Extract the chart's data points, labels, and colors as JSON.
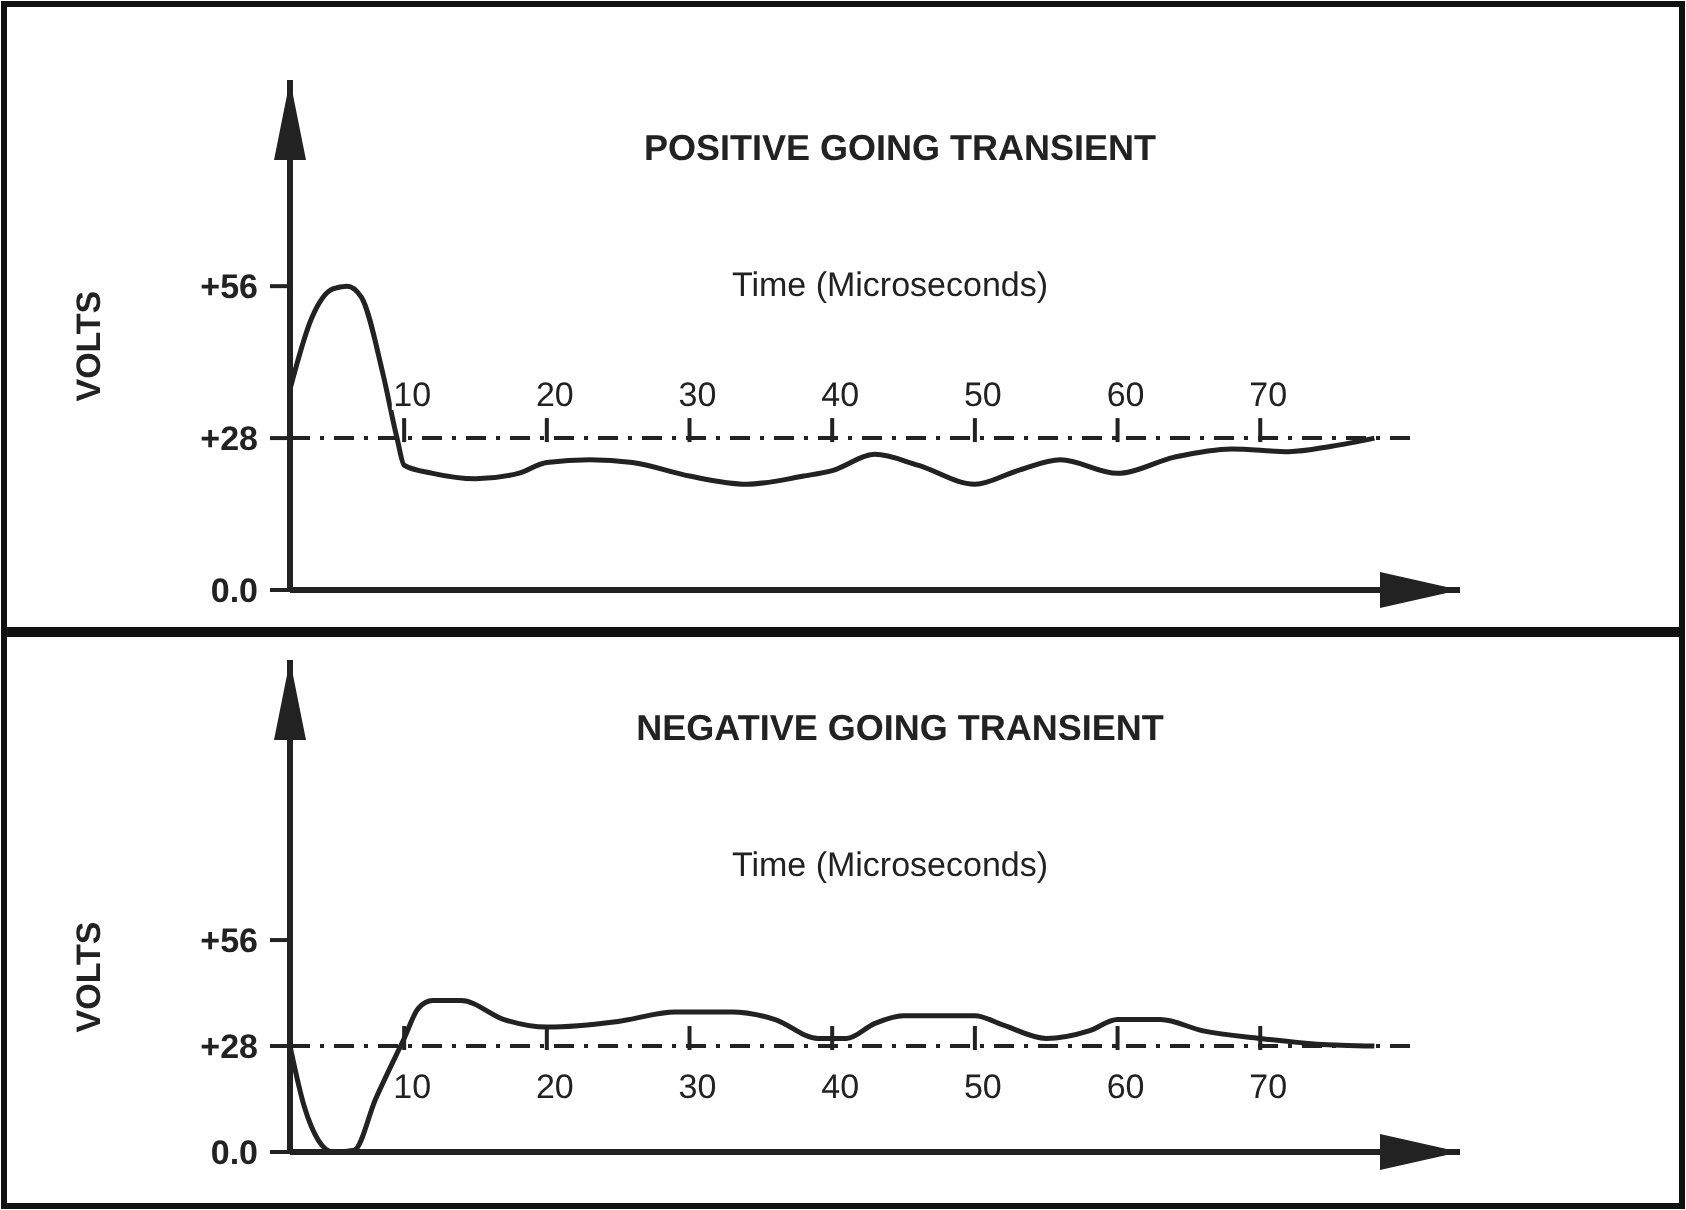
{
  "chart_data": [
    {
      "type": "line",
      "title": "POSITIVE GOING TRANSIENT",
      "xlabel": "Time (Microseconds)",
      "ylabel": "VOLTS",
      "xlim": [
        2,
        84
      ],
      "ylim": [
        0,
        94
      ],
      "xticks": [
        10,
        20,
        30,
        40,
        50,
        60,
        70
      ],
      "yticks": [
        {
          "value": 0,
          "label": "0.0"
        },
        {
          "value": 28,
          "label": "+28"
        },
        {
          "value": 56,
          "label": "+56"
        }
      ],
      "grid": false,
      "marker": "none",
      "line_style": "solid",
      "ref_lines": [
        {
          "axis": "y",
          "value": 28,
          "line_style": "dashed",
          "color": "#222222"
        }
      ],
      "series": [
        {
          "color": "#222222",
          "x": [
            2,
            3.5,
            5,
            6,
            7,
            8.5,
            9.5,
            10,
            12,
            15,
            18,
            20,
            23,
            26,
            30,
            34,
            38,
            40,
            43,
            46,
            50,
            53,
            56,
            60,
            64,
            68,
            72,
            75,
            78
          ],
          "values": [
            37,
            50,
            55.5,
            56,
            54,
            40,
            28,
            23,
            21.5,
            20.5,
            21.5,
            23.5,
            24,
            23.5,
            21,
            19.5,
            21,
            22,
            25,
            23,
            19.5,
            22,
            24,
            21.5,
            24.5,
            26,
            25.5,
            26.5,
            28
          ]
        }
      ]
    },
    {
      "type": "line",
      "title": "NEGATIVE GOING TRANSIENT",
      "xlabel": "Time (Microseconds)",
      "ylabel": "VOLTS",
      "xlim": [
        2,
        84
      ],
      "ylim": [
        0,
        130
      ],
      "xticks": [
        10,
        20,
        30,
        40,
        50,
        60,
        70
      ],
      "yticks": [
        {
          "value": 0,
          "label": "0.0"
        },
        {
          "value": 28,
          "label": "+28"
        },
        {
          "value": 56,
          "label": "+56"
        }
      ],
      "grid": false,
      "marker": "none",
      "line_style": "solid",
      "ref_lines": [
        {
          "axis": "y",
          "value": 28,
          "line_style": "dashed",
          "color": "#222222"
        }
      ],
      "series": [
        {
          "color": "#222222",
          "x": [
            2,
            3,
            4,
            5,
            6.5,
            8,
            10,
            11,
            12,
            14,
            17,
            20,
            25,
            29,
            33,
            36,
            39,
            41,
            43,
            45,
            50,
            52,
            55,
            58,
            60,
            63,
            66,
            70,
            74,
            78
          ],
          "values": [
            28,
            12,
            3,
            0,
            0.5,
            14,
            30,
            38,
            40,
            40,
            35,
            33,
            34.5,
            37,
            37,
            35,
            30,
            30,
            34,
            36,
            36,
            33.5,
            30,
            32,
            35,
            35,
            32,
            30,
            28.5,
            28
          ]
        }
      ]
    }
  ]
}
